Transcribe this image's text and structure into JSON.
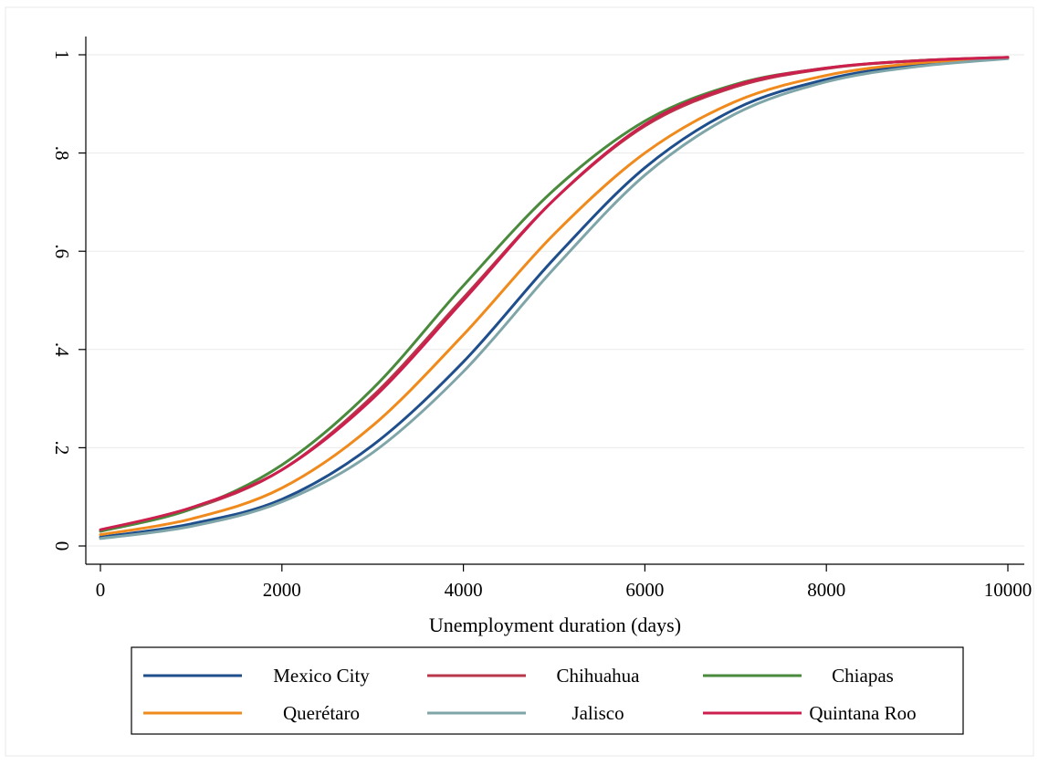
{
  "chart_data": {
    "type": "line",
    "xlabel": "Unemployment duration (days)",
    "ylabel": "",
    "xlim": [
      0,
      10000
    ],
    "ylim": [
      0,
      1
    ],
    "x_ticks": [
      0,
      2000,
      4000,
      6000,
      8000,
      10000
    ],
    "x_tick_labels": [
      "0",
      "2000",
      "4000",
      "6000",
      "8000",
      "10000"
    ],
    "y_ticks": [
      0,
      0.2,
      0.4,
      0.6,
      0.8,
      1
    ],
    "y_tick_labels": [
      "0",
      ".2",
      ".4",
      ".6",
      ".8",
      "1"
    ],
    "grid": true,
    "legend_position": "bottom",
    "x": [
      0,
      1000,
      2000,
      3000,
      4000,
      5000,
      6000,
      7000,
      8000,
      9000,
      10000
    ],
    "series": [
      {
        "name": "Mexico City",
        "color": "#1f4e8c",
        "values": [
          0.018,
          0.045,
          0.095,
          0.205,
          0.375,
          0.585,
          0.77,
          0.89,
          0.95,
          0.98,
          0.993
        ]
      },
      {
        "name": "Chihuahua",
        "color": "#b8374a",
        "values": [
          0.03,
          0.075,
          0.155,
          0.305,
          0.505,
          0.705,
          0.855,
          0.935,
          0.972,
          0.988,
          0.995
        ]
      },
      {
        "name": "Chiapas",
        "color": "#4a8a3c",
        "values": [
          0.03,
          0.075,
          0.165,
          0.32,
          0.53,
          0.725,
          0.865,
          0.94,
          0.973,
          0.988,
          0.994
        ]
      },
      {
        "name": "Querétaro",
        "color": "#f08a1c",
        "values": [
          0.023,
          0.055,
          0.118,
          0.245,
          0.43,
          0.635,
          0.8,
          0.905,
          0.958,
          0.983,
          0.993
        ]
      },
      {
        "name": "Jalisco",
        "color": "#7fa5a8",
        "values": [
          0.015,
          0.04,
          0.09,
          0.19,
          0.355,
          0.565,
          0.755,
          0.88,
          0.945,
          0.976,
          0.992
        ]
      },
      {
        "name": "Quintana Roo",
        "color": "#cc1f4d",
        "values": [
          0.033,
          0.078,
          0.155,
          0.3,
          0.5,
          0.705,
          0.858,
          0.938,
          0.973,
          0.988,
          0.995
        ]
      }
    ]
  }
}
